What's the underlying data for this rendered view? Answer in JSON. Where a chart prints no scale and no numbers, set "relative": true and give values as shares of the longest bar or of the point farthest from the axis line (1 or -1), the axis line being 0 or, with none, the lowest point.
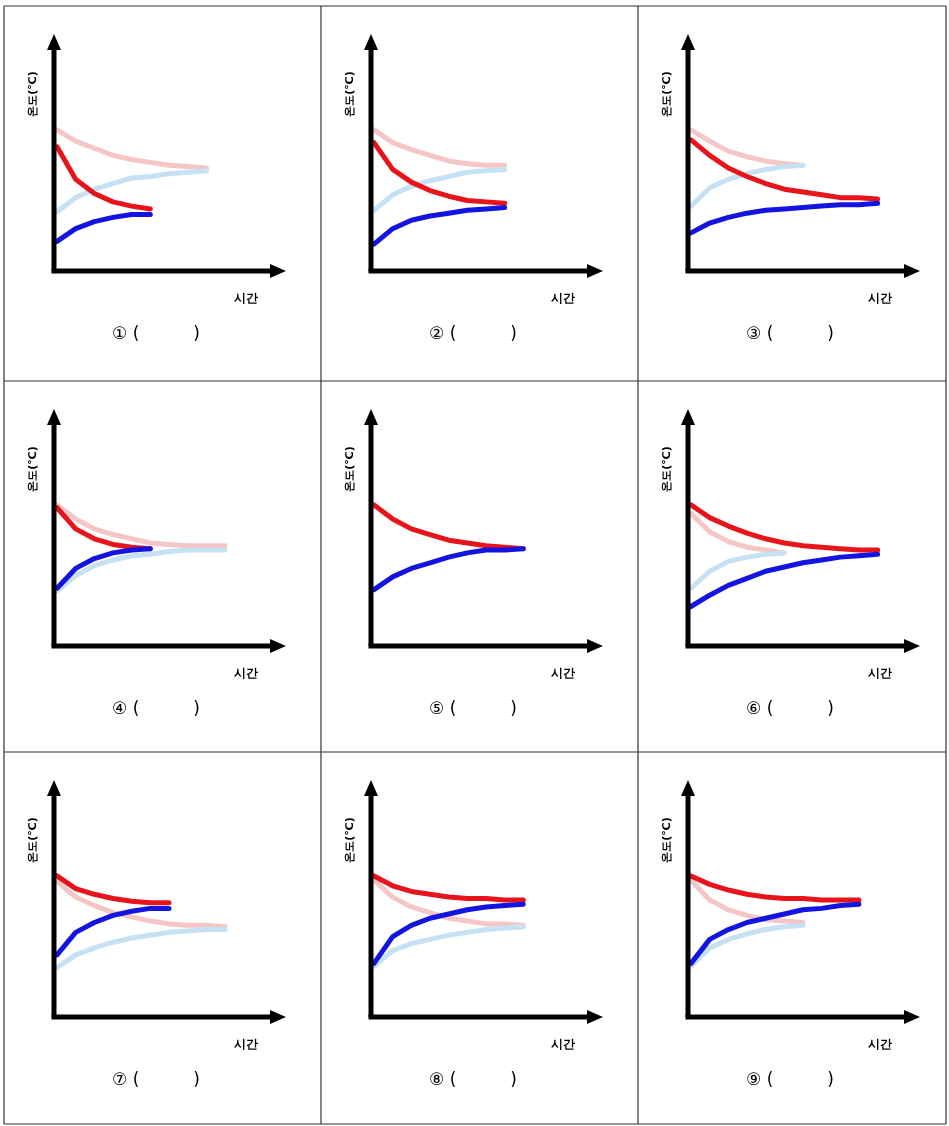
{
  "chart_data": [
    {
      "type": "line",
      "relative": true,
      "ylabel": "온도(℃)",
      "xlabel": "시간",
      "annotations": [
        "① (          )"
      ],
      "categories": [
        null,
        null,
        null,
        null,
        null,
        null,
        null,
        null,
        null,
        null,
        null,
        null,
        null
      ],
      "series": [
        {
          "color": "#f6c6c6",
          "values": [
            1,
            0.92,
            0.87,
            0.82,
            0.79,
            0.77,
            0.75,
            0.74,
            0.73,
            null,
            null,
            null,
            null
          ]
        },
        {
          "color": "#c6e0f4",
          "values": [
            0.42,
            0.52,
            0.58,
            0.62,
            0.66,
            0.67,
            0.69,
            0.7,
            0.71,
            null,
            null,
            null,
            null
          ]
        },
        {
          "color": "#e8141c",
          "values": [
            0.88,
            0.65,
            0.55,
            0.49,
            0.46,
            0.44,
            null,
            null,
            null,
            null,
            null,
            null,
            null
          ]
        },
        {
          "color": "#1414e0",
          "values": [
            0.21,
            0.3,
            0.35,
            0.38,
            0.4,
            0.4,
            null,
            null,
            null,
            null,
            null,
            null,
            null
          ]
        }
      ]
    },
    {
      "type": "line",
      "relative": true,
      "ylabel": "온도(℃)",
      "xlabel": "시간",
      "annotations": [
        "② (          )"
      ],
      "categories": [
        null,
        null,
        null,
        null,
        null,
        null,
        null,
        null,
        null,
        null,
        null,
        null,
        null
      ],
      "series": [
        {
          "color": "#f6c6c6",
          "values": [
            1,
            0.91,
            0.86,
            0.82,
            0.78,
            0.76,
            0.75,
            0.75,
            null,
            null,
            null,
            null,
            null
          ]
        },
        {
          "color": "#c6e0f4",
          "values": [
            0.43,
            0.54,
            0.6,
            0.64,
            0.67,
            0.7,
            0.71,
            0.72,
            null,
            null,
            null,
            null,
            null
          ]
        },
        {
          "color": "#e8141c",
          "values": [
            0.91,
            0.72,
            0.63,
            0.57,
            0.53,
            0.5,
            0.49,
            0.48,
            null,
            null,
            null,
            null,
            null
          ]
        },
        {
          "color": "#1414e0",
          "values": [
            0.19,
            0.3,
            0.36,
            0.39,
            0.41,
            0.43,
            0.44,
            0.45,
            null,
            null,
            null,
            null,
            null
          ]
        }
      ]
    },
    {
      "type": "line",
      "relative": true,
      "ylabel": "온도(℃)",
      "xlabel": "시간",
      "annotations": [
        "③ (          )"
      ],
      "categories": [
        null,
        null,
        null,
        null,
        null,
        null,
        null,
        null,
        null,
        null,
        null,
        null,
        null
      ],
      "series": [
        {
          "color": "#f6c6c6",
          "values": [
            1,
            0.92,
            0.85,
            0.81,
            0.78,
            0.76,
            0.75,
            null,
            null,
            null,
            null,
            null,
            null
          ]
        },
        {
          "color": "#c6e0f4",
          "values": [
            0.46,
            0.59,
            0.65,
            0.69,
            0.72,
            0.74,
            0.75,
            null,
            null,
            null,
            null,
            null,
            null
          ]
        },
        {
          "color": "#e8141c",
          "values": [
            0.93,
            0.82,
            0.73,
            0.67,
            0.62,
            0.58,
            0.56,
            0.54,
            0.52,
            0.52,
            0.51,
            null,
            null
          ]
        },
        {
          "color": "#1414e0",
          "values": [
            0.27,
            0.34,
            0.38,
            0.41,
            0.43,
            0.44,
            0.45,
            0.46,
            0.47,
            0.47,
            0.48,
            null,
            null
          ]
        }
      ]
    },
    {
      "type": "line",
      "relative": true,
      "ylabel": "온도(℃)",
      "xlabel": "시간",
      "annotations": [
        "④ (          )"
      ],
      "categories": [
        null,
        null,
        null,
        null,
        null,
        null,
        null,
        null,
        null,
        null,
        null,
        null,
        null
      ],
      "series": [
        {
          "color": "#f6c6c6",
          "values": [
            1,
            0.9,
            0.83,
            0.79,
            0.76,
            0.73,
            0.72,
            0.71,
            0.71,
            0.71,
            null,
            null,
            null
          ]
        },
        {
          "color": "#c6e0f4",
          "values": [
            0.39,
            0.5,
            0.57,
            0.61,
            0.64,
            0.65,
            0.67,
            0.68,
            0.68,
            0.68,
            null,
            null,
            null
          ]
        },
        {
          "color": "#e8141c",
          "values": [
            0.98,
            0.83,
            0.76,
            0.72,
            0.7,
            0.69,
            null,
            null,
            null,
            null,
            null,
            null,
            null
          ]
        },
        {
          "color": "#1414e0",
          "values": [
            0.41,
            0.55,
            0.62,
            0.66,
            0.68,
            0.69,
            null,
            null,
            null,
            null,
            null,
            null,
            null
          ]
        }
      ]
    },
    {
      "type": "line",
      "relative": true,
      "ylabel": "온도(℃)",
      "xlabel": "시간",
      "annotations": [
        "⑤ (          )"
      ],
      "categories": [
        null,
        null,
        null,
        null,
        null,
        null,
        null,
        null,
        null,
        null,
        null,
        null,
        null
      ],
      "series": [
        {
          "color": "#e8141c",
          "values": [
            1,
            0.9,
            0.83,
            0.79,
            0.75,
            0.73,
            0.71,
            0.7,
            0.69,
            null,
            null,
            null,
            null
          ]
        },
        {
          "color": "#1414e0",
          "values": [
            0.4,
            0.49,
            0.55,
            0.59,
            0.63,
            0.66,
            0.68,
            0.68,
            0.69,
            null,
            null,
            null,
            null
          ]
        }
      ]
    },
    {
      "type": "line",
      "relative": true,
      "ylabel": "온도(℃)",
      "xlabel": "시간",
      "annotations": [
        "⑥ (          )"
      ],
      "categories": [
        null,
        null,
        null,
        null,
        null,
        null,
        null,
        null,
        null,
        null,
        null,
        null,
        null
      ],
      "series": [
        {
          "color": "#f6c6c6",
          "values": [
            0.94,
            0.81,
            0.74,
            0.7,
            0.68,
            0.66,
            null,
            null,
            null,
            null,
            null,
            null,
            null
          ]
        },
        {
          "color": "#c6e0f4",
          "values": [
            0.41,
            0.53,
            0.6,
            0.63,
            0.65,
            0.66,
            null,
            null,
            null,
            null,
            null,
            null,
            null
          ]
        },
        {
          "color": "#e8141c",
          "values": [
            1,
            0.91,
            0.85,
            0.8,
            0.76,
            0.73,
            0.71,
            0.7,
            0.69,
            0.68,
            0.68,
            null,
            null
          ]
        },
        {
          "color": "#1414e0",
          "values": [
            0.28,
            0.36,
            0.43,
            0.48,
            0.53,
            0.56,
            0.59,
            0.61,
            0.63,
            0.64,
            0.65,
            null,
            null
          ]
        }
      ]
    },
    {
      "type": "line",
      "relative": true,
      "ylabel": "온도(℃)",
      "xlabel": "시간",
      "annotations": [
        "⑦ (          )"
      ],
      "categories": [
        null,
        null,
        null,
        null,
        null,
        null,
        null,
        null,
        null,
        null,
        null,
        null,
        null
      ],
      "series": [
        {
          "color": "#f6c6c6",
          "values": [
            0.96,
            0.85,
            0.79,
            0.74,
            0.71,
            0.68,
            0.66,
            0.65,
            0.65,
            0.64,
            null,
            null,
            null
          ]
        },
        {
          "color": "#c6e0f4",
          "values": [
            0.35,
            0.44,
            0.49,
            0.53,
            0.56,
            0.58,
            0.6,
            0.61,
            0.62,
            0.62,
            null,
            null,
            null
          ]
        },
        {
          "color": "#e8141c",
          "values": [
            1,
            0.91,
            0.87,
            0.84,
            0.82,
            0.81,
            0.81,
            null,
            null,
            null,
            null,
            null,
            null
          ]
        },
        {
          "color": "#1414e0",
          "values": [
            0.44,
            0.6,
            0.67,
            0.72,
            0.75,
            0.77,
            0.77,
            null,
            null,
            null,
            null,
            null,
            null
          ]
        }
      ]
    },
    {
      "type": "line",
      "relative": true,
      "ylabel": "온도(℃)",
      "xlabel": "시간",
      "annotations": [
        "⑧ (          )"
      ],
      "categories": [
        null,
        null,
        null,
        null,
        null,
        null,
        null,
        null,
        null,
        null,
        null,
        null,
        null
      ],
      "series": [
        {
          "color": "#f6c6c6",
          "values": [
            0.97,
            0.85,
            0.78,
            0.74,
            0.7,
            0.68,
            0.66,
            0.66,
            0.65,
            null,
            null,
            null,
            null
          ]
        },
        {
          "color": "#c6e0f4",
          "values": [
            0.36,
            0.47,
            0.52,
            0.55,
            0.58,
            0.6,
            0.62,
            0.63,
            0.64,
            null,
            null,
            null,
            null
          ]
        },
        {
          "color": "#e8141c",
          "values": [
            1,
            0.93,
            0.89,
            0.87,
            0.85,
            0.84,
            0.84,
            0.83,
            0.83,
            null,
            null,
            null,
            null
          ]
        },
        {
          "color": "#1414e0",
          "values": [
            0.38,
            0.57,
            0.65,
            0.7,
            0.73,
            0.76,
            0.78,
            0.79,
            0.8,
            null,
            null,
            null,
            null
          ]
        }
      ]
    },
    {
      "type": "line",
      "relative": true,
      "ylabel": "온도(℃)",
      "xlabel": "시간",
      "annotations": [
        "⑨ (          )"
      ],
      "categories": [
        null,
        null,
        null,
        null,
        null,
        null,
        null,
        null,
        null,
        null,
        null,
        null,
        null
      ],
      "series": [
        {
          "color": "#f6c6c6",
          "values": [
            0.97,
            0.83,
            0.76,
            0.72,
            0.69,
            0.68,
            0.67,
            null,
            null,
            null,
            null,
            null,
            null
          ]
        },
        {
          "color": "#c6e0f4",
          "values": [
            0.36,
            0.49,
            0.55,
            0.59,
            0.62,
            0.64,
            0.65,
            null,
            null,
            null,
            null,
            null,
            null
          ]
        },
        {
          "color": "#e8141c",
          "values": [
            1,
            0.94,
            0.9,
            0.87,
            0.85,
            0.84,
            0.84,
            0.83,
            0.83,
            0.83,
            null,
            null,
            null
          ]
        },
        {
          "color": "#1414e0",
          "values": [
            0.38,
            0.55,
            0.62,
            0.67,
            0.7,
            0.73,
            0.76,
            0.77,
            0.79,
            0.8,
            null,
            null,
            null
          ]
        }
      ]
    }
  ]
}
